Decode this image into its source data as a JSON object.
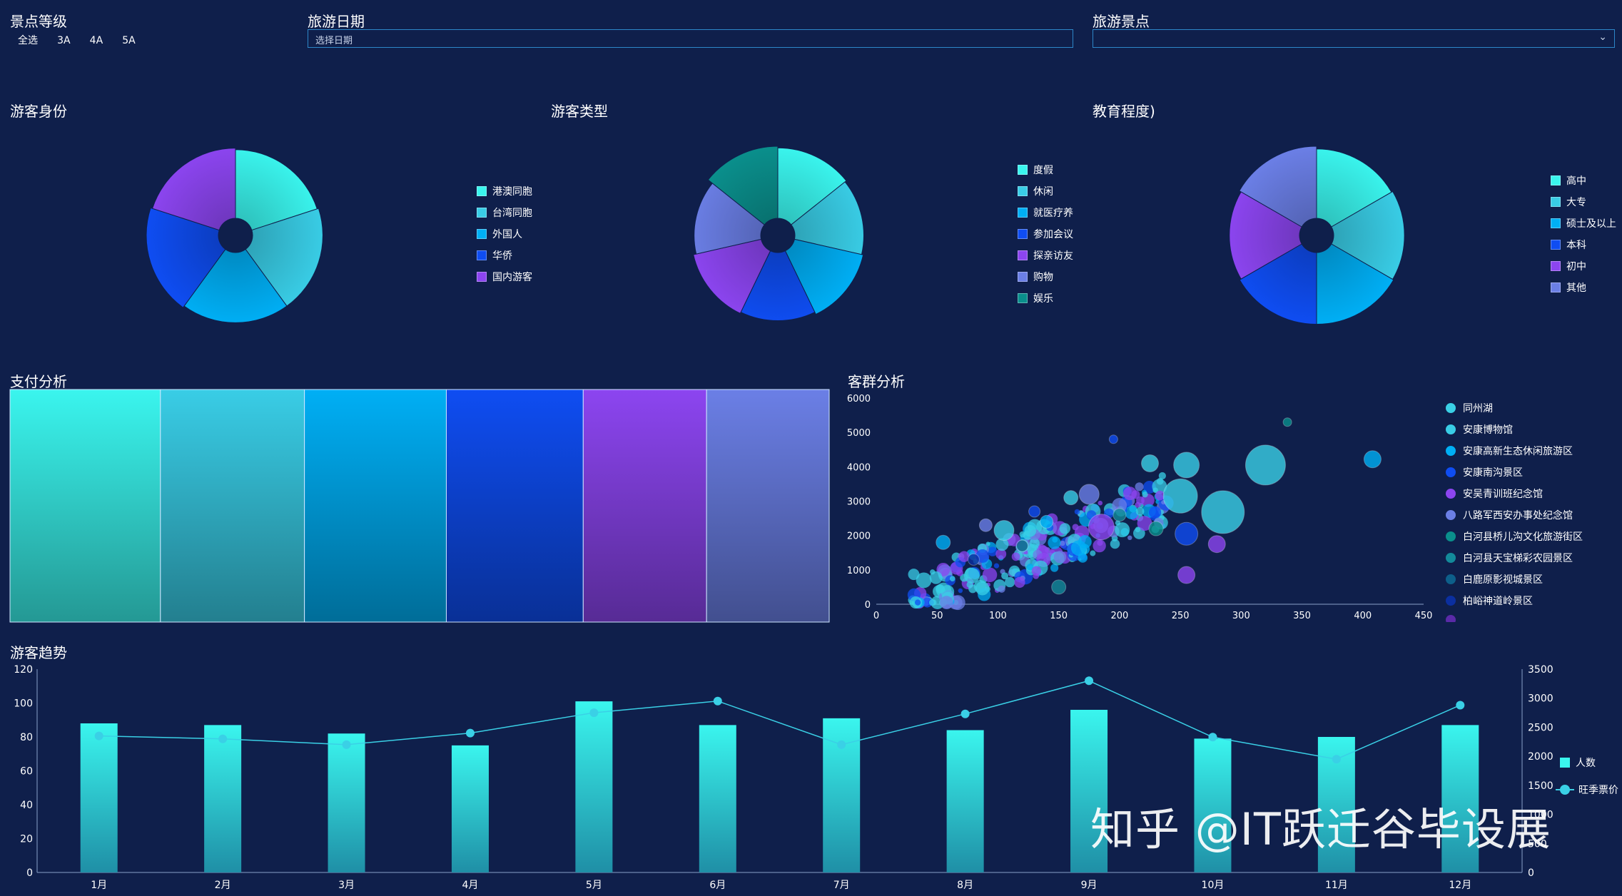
{
  "filters": {
    "level": {
      "title": "景点等级",
      "options": [
        "全选",
        "3A",
        "4A",
        "5A"
      ]
    },
    "date": {
      "title": "旅游日期",
      "placeholder": "选择日期"
    },
    "spot": {
      "title": "旅游景点",
      "value": ""
    }
  },
  "chart_data": [
    {
      "id": "identity",
      "type": "pie",
      "title": "游客身份",
      "rose": true,
      "categories": [
        "港澳同胞",
        "台湾同胞",
        "外国人",
        "华侨",
        "国内游客"
      ],
      "values": [
        95,
        100,
        100,
        106,
        100
      ],
      "colors": [
        "#3af5ee",
        "#39cde6",
        "#00aff5",
        "#0f4df2",
        "#8c45f0"
      ],
      "legend_position": "right"
    },
    {
      "id": "type",
      "type": "pie",
      "title": "游客类型",
      "rose": true,
      "categories": [
        "度假",
        "休闲",
        "就医疗养",
        "参加会议",
        "探亲访友",
        "购物",
        "娱乐"
      ],
      "values": [
        95,
        90,
        95,
        88,
        92,
        83,
        100
      ],
      "colors": [
        "#3af5ee",
        "#39cde6",
        "#00aff5",
        "#0f4df2",
        "#8c45f0",
        "#6b7fe6",
        "#0a8f8c"
      ],
      "legend_position": "right"
    },
    {
      "id": "education",
      "type": "pie",
      "title": "教育程度)",
      "rose": true,
      "categories": [
        "高中",
        "大专",
        "硕士及以上",
        "本科",
        "初中",
        "其他"
      ],
      "values": [
        90,
        94,
        97,
        97,
        92,
        98
      ],
      "colors": [
        "#3af5ee",
        "#39cde6",
        "#00aff5",
        "#0f4df2",
        "#8c45f0",
        "#6b7fe6"
      ],
      "legend_position": "right"
    },
    {
      "id": "payment",
      "type": "bar",
      "title": "支付分析",
      "categories": [
        "",
        "",
        "",
        "",
        "",
        ""
      ],
      "values": [
        211,
        202,
        199,
        192,
        173,
        172
      ],
      "colors": [
        "#3af5ee",
        "#39cde6",
        "#00aff5",
        "#0f4df2",
        "#8c45f0",
        "#6b7fe6"
      ]
    },
    {
      "id": "crowd",
      "type": "scatter",
      "title": "客群分析",
      "xlim": [
        0,
        450
      ],
      "ylim": [
        0,
        6000
      ],
      "xticks": [
        0,
        50,
        100,
        150,
        200,
        250,
        300,
        350,
        400,
        450
      ],
      "yticks": [
        0,
        1000,
        2000,
        3000,
        4000,
        5000,
        6000
      ],
      "legend_position": "right",
      "series": [
        {
          "name": "同州湖",
          "color": "#3ad0e6",
          "points": [
            [
              320,
              4050,
              28
            ],
            [
              250,
              3150,
              24
            ],
            [
              285,
              2680,
              30
            ],
            [
              225,
              4100,
              12
            ]
          ]
        },
        {
          "name": "安康博物馆",
          "color": "#39cde6",
          "points": [
            [
              255,
              4050,
              18
            ],
            [
              160,
              3100,
              10
            ],
            [
              105,
              2150,
              14
            ]
          ]
        },
        {
          "name": "安康高新生态休闲旅游区",
          "color": "#00aff5",
          "points": [
            [
              408,
              4220,
              12
            ],
            [
              55,
              1800,
              10
            ],
            [
              140,
              2400,
              9
            ]
          ]
        },
        {
          "name": "安康南沟景区",
          "color": "#0f4df2",
          "points": [
            [
              255,
              2050,
              16
            ],
            [
              195,
              4800,
              6
            ],
            [
              130,
              2700,
              8
            ]
          ]
        },
        {
          "name": "安吴青训班纪念馆",
          "color": "#8c45f0",
          "points": [
            [
              255,
              850,
              12
            ],
            [
              280,
              1750,
              12
            ],
            [
              185,
              2250,
              18
            ]
          ]
        },
        {
          "name": "八路军西安办事处纪念馆",
          "color": "#6b7fe6",
          "points": [
            [
              175,
              3200,
              14
            ],
            [
              90,
              2300,
              9
            ]
          ]
        },
        {
          "name": "白河县桥儿沟文化旅游街区",
          "color": "#0a8f8c",
          "points": [
            [
              338,
              5300,
              6
            ],
            [
              230,
              2200,
              10
            ]
          ]
        },
        {
          "name": "白河县天宝梯彩农园景区",
          "color": "#138a9a",
          "points": [
            [
              150,
              500,
              10
            ],
            [
              200,
              2600,
              9
            ]
          ]
        },
        {
          "name": "白鹿原影视城景区",
          "color": "#0d5f8a",
          "points": [
            [
              120,
              1700,
              8
            ]
          ]
        },
        {
          "name": "柏峪神道岭景区",
          "color": "#0b2fa0",
          "points": [
            [
              80,
              1300,
              8
            ]
          ]
        },
        {
          "name": "",
          "color": "#5a2aa8",
          "points": []
        }
      ]
    },
    {
      "id": "trend",
      "type": "bar",
      "title": "游客趋势",
      "categories": [
        "1月",
        "2月",
        "3月",
        "4月",
        "5月",
        "6月",
        "7月",
        "8月",
        "9月",
        "10月",
        "11月",
        "12月"
      ],
      "ylim": [
        0,
        120
      ],
      "yticks": [
        0,
        20,
        40,
        60,
        80,
        100,
        120
      ],
      "y2lim": [
        0,
        3500
      ],
      "y2ticks": [
        0,
        500,
        1000,
        1500,
        2000,
        2500,
        3000,
        3500
      ],
      "legend_position": "right",
      "series": [
        {
          "name": "人数",
          "type": "bar",
          "axis": "left",
          "color": "#3af5ee",
          "values": [
            88,
            87,
            82,
            75,
            101,
            87,
            91,
            84,
            96,
            79,
            80,
            87
          ]
        },
        {
          "name": "旺季票价",
          "type": "line",
          "axis": "right",
          "color": "#3ad0e6",
          "values": [
            2350,
            2300,
            2200,
            2400,
            2750,
            2950,
            2200,
            2730,
            3300,
            2330,
            1950,
            2880
          ]
        }
      ]
    }
  ],
  "watermark": "知乎 @IT跃迁谷毕设展"
}
